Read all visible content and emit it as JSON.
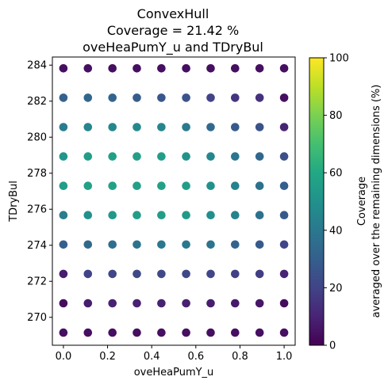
{
  "chart_data": {
    "type": "scatter",
    "title_lines": [
      "ConvexHull",
      "Coverage = 21.42 %",
      "oveHeaPumY_u and TDryBul"
    ],
    "xlabel": "oveHeaPumY_u",
    "ylabel": "TDryBul",
    "xlim": [
      -0.05,
      1.05
    ],
    "ylim": [
      268.45,
      284.45
    ],
    "xticks": [
      0.0,
      0.2,
      0.4,
      0.6,
      0.8,
      1.0
    ],
    "xtick_labels": [
      "0.0",
      "0.2",
      "0.4",
      "0.6",
      "0.8",
      "1.0"
    ],
    "yticks": [
      270,
      272,
      274,
      276,
      278,
      280,
      282,
      284
    ],
    "ytick_labels": [
      "270",
      "272",
      "274",
      "276",
      "278",
      "280",
      "282",
      "284"
    ],
    "x": [
      0.0,
      0.111,
      0.222,
      0.333,
      0.444,
      0.556,
      0.667,
      0.778,
      0.889,
      1.0
    ],
    "y": [
      269.15,
      270.78,
      272.41,
      274.04,
      275.67,
      277.3,
      278.93,
      280.56,
      282.19,
      283.82
    ],
    "coverage": [
      [
        4,
        4,
        4,
        4,
        4,
        4,
        4,
        4,
        4,
        4
      ],
      [
        3,
        8,
        9,
        9,
        9,
        9,
        8,
        7,
        6,
        3
      ],
      [
        8,
        20,
        21,
        22,
        22,
        22,
        21,
        19,
        18,
        10
      ],
      [
        30,
        34,
        36,
        38,
        40,
        40,
        38,
        32,
        28,
        20
      ],
      [
        42,
        50,
        53,
        55,
        55,
        54,
        49,
        44,
        37,
        28
      ],
      [
        55,
        57,
        57,
        57,
        57,
        55,
        50,
        44,
        37,
        30
      ],
      [
        52,
        55,
        56,
        56,
        55,
        51,
        46,
        39,
        33,
        24
      ],
      [
        42,
        45,
        46,
        47,
        45,
        41,
        34,
        28,
        25,
        10
      ],
      [
        31,
        33,
        32,
        29,
        27,
        25,
        20,
        15,
        14,
        4
      ],
      [
        4,
        4,
        4,
        4,
        4,
        4,
        4,
        4,
        4,
        4
      ]
    ],
    "colorbar": {
      "label_lines": [
        "Coverage",
        "averaged over the remaining dimensions (%)"
      ],
      "range": [
        0,
        100
      ],
      "ticks": [
        0,
        20,
        40,
        60,
        80,
        100
      ],
      "tick_labels": [
        "0",
        "20",
        "40",
        "60",
        "80",
        "100"
      ],
      "colormap": "viridis"
    }
  }
}
